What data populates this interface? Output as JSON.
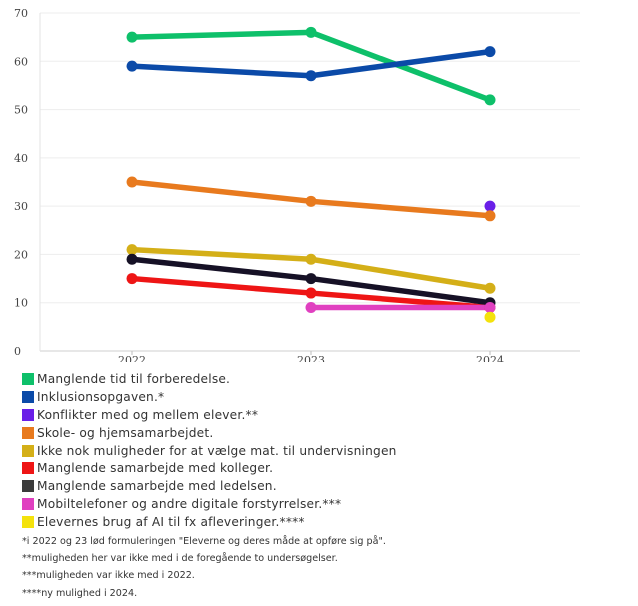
{
  "chart_data": {
    "type": "line",
    "title": "",
    "xlabel": "",
    "ylabel": "",
    "categories": [
      "2022",
      "2023",
      "2024"
    ],
    "ylim": [
      0,
      70
    ],
    "yticks": [
      0,
      10,
      20,
      30,
      40,
      50,
      60,
      70
    ],
    "grid": true,
    "legend_position": "bottom",
    "series": [
      {
        "name": "Manglende tid til forberedelse.",
        "color": "#0ec06a",
        "values": [
          65,
          66,
          52
        ]
      },
      {
        "name": "Inklusionsopgaven.*",
        "color": "#0b4aa8",
        "values": [
          59,
          57,
          62
        ]
      },
      {
        "name": "Konflikter med og mellem elever.**",
        "color": "#6a1fe8",
        "values": [
          null,
          null,
          30
        ]
      },
      {
        "name": "Skole- og hjemsamarbejdet.",
        "color": "#e87a1e",
        "values": [
          35,
          31,
          28
        ]
      },
      {
        "name": "Ikke nok muligheder for at vælge mat. til undervisningen",
        "color": "#d4af18",
        "values": [
          21,
          19,
          13
        ]
      },
      {
        "name": "Manglende samarbejde med kolleger.",
        "color": "#ee1515",
        "values": [
          15,
          12,
          9
        ]
      },
      {
        "name": "Manglende samarbejde med ledelsen.",
        "color": "#3b3b3b",
        "line_color": "#161126",
        "values": [
          19,
          15,
          10
        ]
      },
      {
        "name": "Mobiltelefoner og andre digitale forstyrrelser.***",
        "color": "#e040c0",
        "values": [
          null,
          9,
          9
        ]
      },
      {
        "name": "Elevernes brug af AI til fx afleveringer.****",
        "color": "#f4e20c",
        "values": [
          null,
          null,
          7
        ]
      }
    ]
  },
  "footnotes": [
    "*i 2022 og 23 lød formuleringen \"Eleverne og deres måde at opføre sig på\".",
    "**muligheden her var ikke med i de foregående to undersøgelser.",
    "***muligheden var ikke med i 2022.",
    "****ny mulighed i 2024."
  ]
}
